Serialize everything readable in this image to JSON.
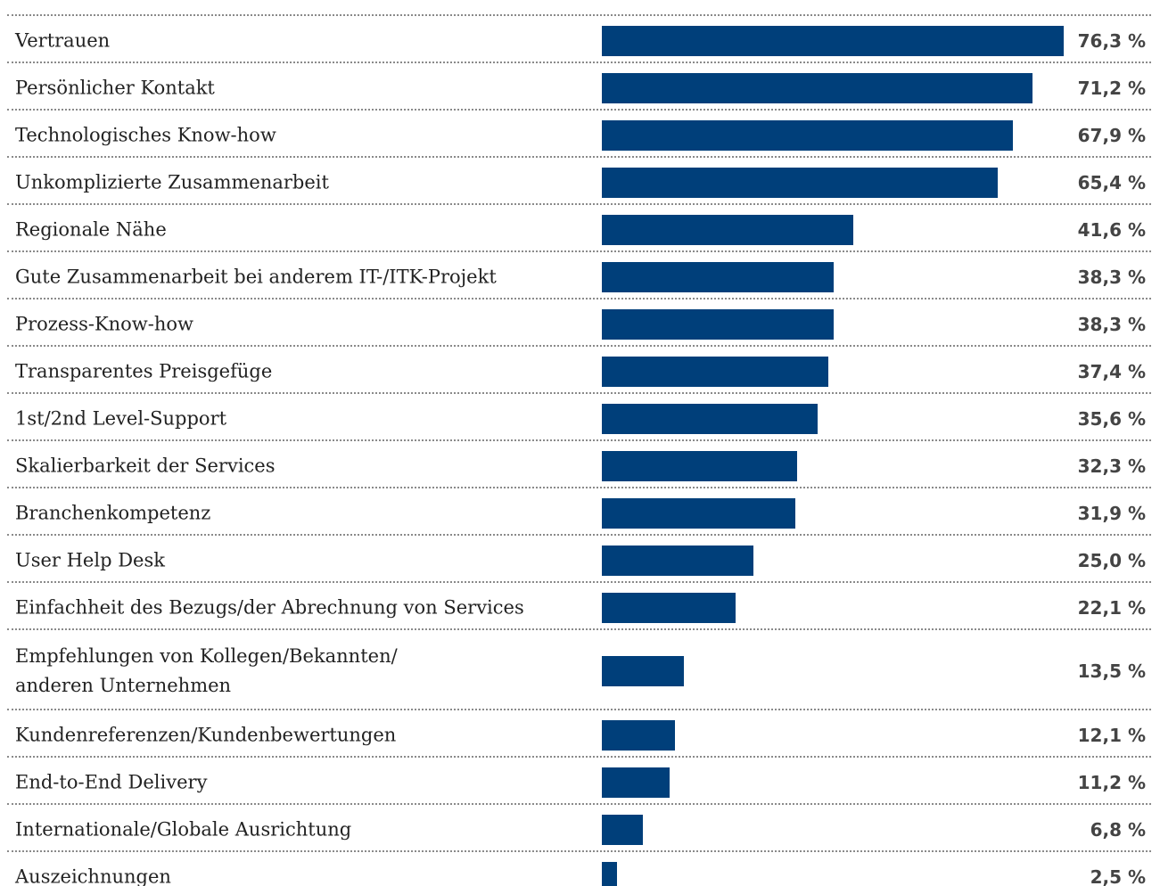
{
  "chart_data": {
    "type": "bar",
    "orientation": "horizontal",
    "color": "#003f7a",
    "categories": [
      "Vertrauen",
      "Persönlicher Kontakt",
      "Technologisches Know-how",
      "Unkomplizierte Zusammenarbeit",
      "Regionale Nähe",
      "Gute Zusammenarbeit bei anderem IT-/ITK-Projekt",
      "Prozess-Know-how",
      "Transparentes Preisgefüge",
      "1st/2nd Level-Support",
      "Skalierbarkeit der Services",
      "Branchenkompetenz",
      "User Help Desk",
      "Einfachheit des Bezugs/der Abrechnung von Services",
      "Empfehlungen von Kollegen/Bekannten/\nanderen Unternehmen",
      "Kundenreferenzen/Kundenbewertungen",
      "End-to-End Delivery",
      "Internationale/Globale Ausrichtung",
      "Auszeichnungen"
    ],
    "values": [
      76.3,
      71.2,
      67.9,
      65.4,
      41.6,
      38.3,
      38.3,
      37.4,
      35.6,
      32.3,
      31.9,
      25.0,
      22.1,
      13.5,
      12.1,
      11.2,
      6.8,
      2.5
    ],
    "value_labels": [
      "76,3 %",
      "71,2 %",
      "67,9 %",
      "65,4 %",
      "41,6 %",
      "38,3 %",
      "38,3 %",
      "37,4 %",
      "35,6 %",
      "32,3 %",
      "31,9 %",
      "25,0 %",
      "22,1 %",
      "13,5 %",
      "12,1 %",
      "11,2 %",
      "6,8 %",
      "2,5 %"
    ]
  }
}
